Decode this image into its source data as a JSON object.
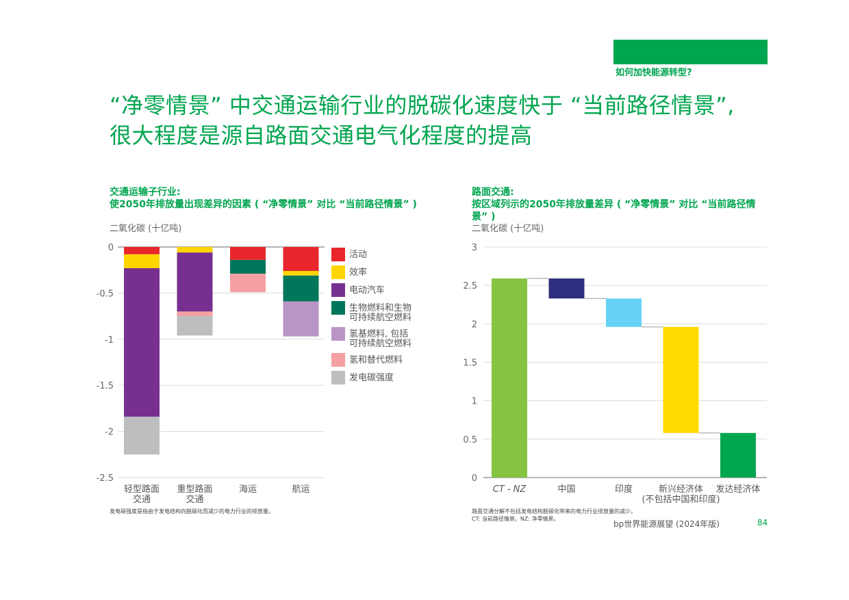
{
  "header": {
    "section_label": "如何加快能源转型?",
    "title": "“净零情景” 中交通运输行业的脱碳化速度快于 “当前路径情景”, 很大程度是源自路面交通电气化程度的提高"
  },
  "colors": {
    "brand_green": "#00a54f",
    "activity": "#e8262b",
    "efficiency": "#ffd500",
    "ev": "#77308f",
    "biofuel": "#00775a",
    "hydrogen_based": "#b996c5",
    "hydrogen": "#f5a0a3",
    "power_intensity": "#bcbec0"
  },
  "left": {
    "heading_line1": "交通运输子行业:",
    "heading_line2": "使2050年排放量出现差异的因素 ( “净零情景” 对比 “当前路径情景” )",
    "unit": "二氧化碳 (十亿吨)",
    "footnote": "发电碳强度是指由于发电结构向脱碳化而减少的电力行业的排放量。"
  },
  "right": {
    "heading_line1": "路面交通:",
    "heading_line2": "按区域列示的2050年排放量差异 ( “净零情景” 对比 “当前路径情",
    "heading_line3": "景” )",
    "unit": "二氧化碳 (十亿吨)",
    "footnote1": "路面交通分解不包括发电结构脱碳化带来的电力行业排放量的减少。",
    "footnote2": "CT: 当前路径情景。NZ: 净零情景。"
  },
  "footer": {
    "brand": "bp世界能源展望 (2024年版)",
    "page": "84"
  },
  "chart_data": [
    {
      "type": "bar",
      "stacked": true,
      "ylim": [
        -2.5,
        0
      ],
      "yticks": [
        0,
        -0.5,
        -1,
        -1.5,
        -2,
        -2.5
      ],
      "ytick_labels": [
        "0",
        "-0.5",
        "-1",
        "-1.5",
        "-2",
        "-2.5"
      ],
      "categories": [
        [
          "轻型路面",
          "交通"
        ],
        [
          "重型路面",
          "交通"
        ],
        [
          "海运"
        ],
        [
          "航运"
        ]
      ],
      "series": [
        {
          "name": "活动",
          "color": "#e8262b",
          "values": [
            -0.08,
            0,
            -0.14,
            -0.26
          ]
        },
        {
          "name": "效率",
          "color": "#ffd500",
          "values": [
            -0.15,
            -0.06,
            0,
            -0.05
          ]
        },
        {
          "name": "电动汽车",
          "color": "#77308f",
          "values": [
            -1.61,
            -0.64,
            0,
            0
          ]
        },
        {
          "name": "生物燃料和生物可持续航空燃料",
          "color": "#00775a",
          "legend_lines": [
            "生物燃料和生物",
            "可持续航空燃料"
          ],
          "values": [
            0,
            0,
            -0.15,
            -0.28
          ]
        },
        {
          "name": "氢基燃料, 包括可持续航空燃料",
          "color": "#b996c5",
          "legend_lines": [
            "氢基燃料, 包括",
            "可持续航空燃料"
          ],
          "values": [
            0,
            0,
            0,
            -0.38
          ]
        },
        {
          "name": "氢和替代燃料",
          "color": "#f5a0a3",
          "values": [
            0,
            -0.05,
            -0.2,
            0
          ]
        },
        {
          "name": "发电碳强度",
          "color": "#bcbec0",
          "values": [
            -0.41,
            -0.21,
            0,
            0
          ]
        }
      ]
    },
    {
      "type": "bar",
      "waterfall": true,
      "ylim": [
        0,
        3
      ],
      "yticks": [
        0,
        0.5,
        1,
        1.5,
        2,
        2.5,
        3
      ],
      "ytick_labels": [
        "0",
        "0.5",
        "1",
        "1.5",
        "2",
        "2.5",
        "3"
      ],
      "categories": [
        [
          "CT - NZ"
        ],
        [
          "中国"
        ],
        [
          "印度"
        ],
        [
          "新兴经济体",
          "(不包括中国和印度)"
        ],
        [
          "发达经济体"
        ]
      ],
      "bars": [
        {
          "bottom": 0,
          "top": 2.59,
          "color": "#84c441"
        },
        {
          "bottom": 2.33,
          "top": 2.59,
          "color": "#2e2e7e"
        },
        {
          "bottom": 1.96,
          "top": 2.33,
          "color": "#66d1f5"
        },
        {
          "bottom": 0.58,
          "top": 1.96,
          "color": "#ffda00"
        },
        {
          "bottom": 0,
          "top": 0.58,
          "color": "#00a54f"
        }
      ]
    }
  ]
}
